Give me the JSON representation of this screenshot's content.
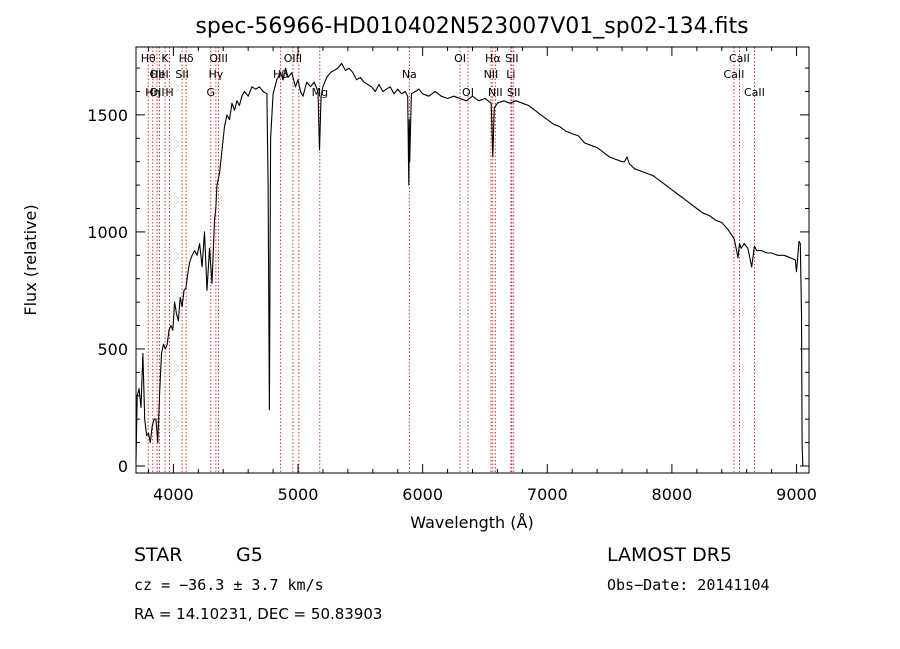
{
  "chart_data": {
    "type": "line",
    "title": "spec-56966-HD010402N523007V01_sp02-134.fits",
    "xlabel": "Wavelength (Å)",
    "ylabel": "Flux (relative)",
    "xlim": [
      3700,
      9100
    ],
    "ylim": [
      -30,
      1790
    ],
    "xticks": [
      4000,
      5000,
      6000,
      7000,
      8000,
      9000
    ],
    "xtick_labels": [
      "4000",
      "5000",
      "6000",
      "7000",
      "8000",
      "9000"
    ],
    "yticks": [
      0,
      500,
      1000,
      1500
    ],
    "ytick_labels": [
      "0",
      "500",
      "1000",
      "1500"
    ],
    "grid": false,
    "line_color": "#000000",
    "marker_color": "#cc0000",
    "series": [
      {
        "x": [
          3700,
          3710,
          3725,
          3740,
          3755,
          3770,
          3785,
          3800,
          3815,
          3830,
          3845,
          3860,
          3875,
          3890,
          3905,
          3920,
          3935,
          3950,
          3965,
          3980,
          3995,
          4010,
          4025,
          4040,
          4055,
          4070,
          4085,
          4100,
          4115,
          4130,
          4150,
          4170,
          4190,
          4210,
          4230,
          4250,
          4270,
          4290,
          4310,
          4330,
          4340,
          4350,
          4370,
          4390,
          4410,
          4430,
          4450,
          4470,
          4490,
          4510,
          4530,
          4550,
          4570,
          4600,
          4630,
          4660,
          4690,
          4720,
          4750,
          4760,
          4770,
          4780,
          4800,
          4830,
          4860,
          4880,
          4900,
          4920,
          4950,
          4980,
          5000,
          5020,
          5040,
          5070,
          5100,
          5130,
          5160,
          5172,
          5185,
          5200,
          5230,
          5260,
          5290,
          5320,
          5350,
          5380,
          5410,
          5440,
          5470,
          5500,
          5530,
          5560,
          5590,
          5620,
          5650,
          5680,
          5710,
          5740,
          5770,
          5800,
          5830,
          5860,
          5880,
          5889,
          5893,
          5896,
          5910,
          5940,
          5970,
          6000,
          6050,
          6100,
          6150,
          6200,
          6250,
          6300,
          6350,
          6400,
          6450,
          6500,
          6550,
          6563,
          6575,
          6600,
          6650,
          6700,
          6750,
          6800,
          6850,
          6900,
          6950,
          7000,
          7050,
          7100,
          7150,
          7200,
          7250,
          7300,
          7350,
          7400,
          7450,
          7500,
          7550,
          7600,
          7620,
          7640,
          7660,
          7700,
          7750,
          7800,
          7850,
          7900,
          7950,
          8000,
          8050,
          8100,
          8150,
          8200,
          8250,
          8300,
          8350,
          8400,
          8450,
          8500,
          8530,
          8542,
          8555,
          8580,
          8610,
          8640,
          8662,
          8680,
          8720,
          8760,
          8800,
          8850,
          8900,
          8950,
          8990,
          9000,
          9020,
          9030,
          9040,
          9045,
          9050
        ],
        "y": [
          20,
          300,
          330,
          250,
          480,
          200,
          130,
          140,
          100,
          170,
          200,
          200,
          100,
          320,
          480,
          520,
          500,
          520,
          580,
          600,
          580,
          700,
          650,
          620,
          720,
          680,
          750,
          760,
          820,
          870,
          900,
          920,
          900,
          950,
          850,
          1000,
          750,
          930,
          780,
          1050,
          1100,
          1200,
          1250,
          1350,
          1450,
          1500,
          1480,
          1550,
          1520,
          1560,
          1540,
          1580,
          1600,
          1580,
          1620,
          1610,
          1620,
          1600,
          1590,
          1200,
          240,
          1400,
          1590,
          1650,
          1680,
          1650,
          1700,
          1660,
          1680,
          1620,
          1650,
          1600,
          1580,
          1640,
          1620,
          1640,
          1600,
          1350,
          1580,
          1620,
          1660,
          1680,
          1690,
          1700,
          1720,
          1690,
          1700,
          1680,
          1650,
          1660,
          1640,
          1630,
          1620,
          1600,
          1630,
          1600,
          1610,
          1620,
          1590,
          1610,
          1590,
          1600,
          1580,
          1200,
          1480,
          1300,
          1590,
          1600,
          1610,
          1590,
          1580,
          1600,
          1580,
          1570,
          1580,
          1570,
          1560,
          1580,
          1560,
          1570,
          1550,
          1320,
          1530,
          1550,
          1560,
          1550,
          1560,
          1550,
          1540,
          1520,
          1500,
          1480,
          1460,
          1450,
          1430,
          1420,
          1410,
          1380,
          1370,
          1360,
          1340,
          1320,
          1310,
          1300,
          1300,
          1320,
          1290,
          1270,
          1260,
          1250,
          1240,
          1220,
          1200,
          1180,
          1160,
          1140,
          1120,
          1100,
          1080,
          1070,
          1050,
          1040,
          1010,
          970,
          890,
          950,
          930,
          950,
          930,
          850,
          940,
          920,
          920,
          910,
          910,
          900,
          900,
          890,
          880,
          830,
          960,
          950,
          650,
          100,
          0
        ]
      }
    ],
    "line_markers": [
      {
        "x": 3798,
        "labels": [
          "Hθ"
        ],
        "rows": [
          1
        ]
      },
      {
        "x": 3835,
        "labels": [
          "Hη"
        ],
        "rows": [
          3
        ]
      },
      {
        "x": 3869,
        "labels": [
          "OII",
          "OII"
        ],
        "rows": [
          2,
          3
        ]
      },
      {
        "x": 3889,
        "labels": [
          "HeI"
        ],
        "rows": [
          2
        ]
      },
      {
        "x": 3933,
        "labels": [
          "K"
        ],
        "rows": [
          1
        ]
      },
      {
        "x": 3969,
        "labels": [
          "H"
        ],
        "rows": [
          3
        ]
      },
      {
        "x": 4070,
        "labels": [
          "SII"
        ],
        "rows": [
          2
        ]
      },
      {
        "x": 4102,
        "labels": [
          "Hδ"
        ],
        "rows": [
          1
        ]
      },
      {
        "x": 4300,
        "labels": [
          "G"
        ],
        "rows": [
          3
        ]
      },
      {
        "x": 4341,
        "labels": [
          "Hγ"
        ],
        "rows": [
          2
        ]
      },
      {
        "x": 4363,
        "labels": [
          "OIII"
        ],
        "rows": [
          1
        ]
      },
      {
        "x": 4861,
        "labels": [
          "Hβ"
        ],
        "rows": [
          2
        ]
      },
      {
        "x": 4959,
        "labels": [
          "OIII"
        ],
        "rows": [
          1
        ]
      },
      {
        "x": 5007,
        "labels": [],
        "rows": []
      },
      {
        "x": 5175,
        "labels": [
          "Mg"
        ],
        "rows": [
          3
        ]
      },
      {
        "x": 5893,
        "labels": [
          "Na"
        ],
        "rows": [
          2
        ]
      },
      {
        "x": 6300,
        "labels": [
          "OI"
        ],
        "rows": [
          1
        ]
      },
      {
        "x": 6364,
        "labels": [
          "OI"
        ],
        "rows": [
          3
        ]
      },
      {
        "x": 6548,
        "labels": [
          "NII"
        ],
        "rows": [
          2
        ]
      },
      {
        "x": 6563,
        "labels": [
          "Hα"
        ],
        "rows": [
          1
        ]
      },
      {
        "x": 6583,
        "labels": [
          "NII"
        ],
        "rows": [
          3
        ]
      },
      {
        "x": 6708,
        "labels": [
          "Li"
        ],
        "rows": [
          2
        ]
      },
      {
        "x": 6716,
        "labels": [
          "SII"
        ],
        "rows": [
          1
        ]
      },
      {
        "x": 6731,
        "labels": [
          "SII"
        ],
        "rows": [
          3
        ]
      },
      {
        "x": 8498,
        "labels": [
          "CaII"
        ],
        "rows": [
          2
        ]
      },
      {
        "x": 8542,
        "labels": [
          "CaII"
        ],
        "rows": [
          1
        ]
      },
      {
        "x": 8662,
        "labels": [
          "CaII"
        ],
        "rows": [
          3
        ]
      }
    ]
  },
  "info": {
    "object_class": "STAR",
    "subclass": "G5",
    "survey": "LAMOST DR5",
    "redshift_text": "cz = −36.3 ± 3.7 km/s",
    "obs_date": "Obs−Date: 20141104",
    "coords": "RA =  14.10231, DEC =  50.83903"
  }
}
